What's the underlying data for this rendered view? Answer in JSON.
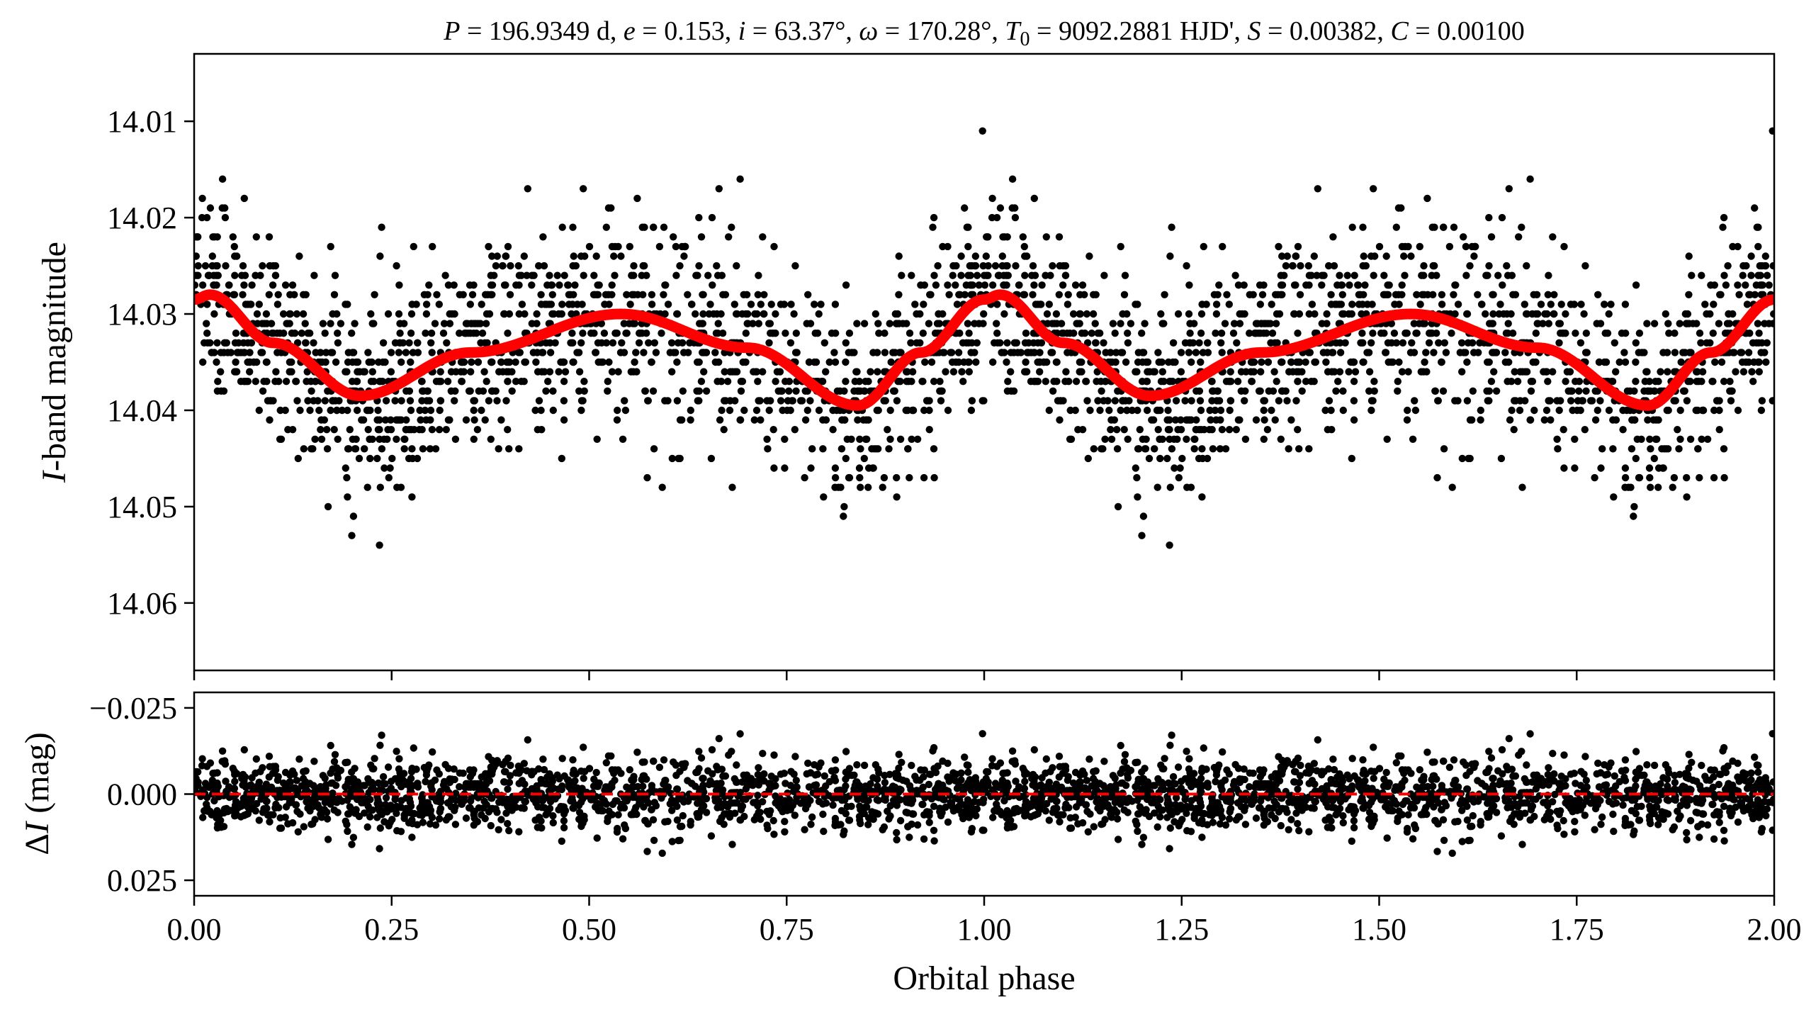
{
  "chart_data": [
    {
      "type": "scatter",
      "panel": "top",
      "title": "P = 196.9349 d, e = 0.153, i = 63.37°, ω = 170.28°, T0 = 9092.2881 HJD', S = 0.00382, C = 0.00100",
      "title_parts": {
        "p_sym": "P",
        "p_val": " = 196.9349 d, ",
        "e_sym": "e",
        "e_val": " = 0.153, ",
        "i_sym": "i",
        "i_val": " = 63.37°, ",
        "w_sym": "ω",
        "w_val": " = 170.28°, ",
        "t_sym": "T",
        "t_sub": "0",
        "t_val": " = 9092.2881 HJD', ",
        "s_sym": "S",
        "s_val": " = 0.00382, ",
        "c_sym": "C",
        "c_val": " = 0.00100"
      },
      "xlabel": "",
      "ylabel_italic": "I",
      "ylabel_rest": "-band magnitude",
      "xlim": [
        0.0,
        2.0
      ],
      "ylim": [
        14.067,
        14.003
      ],
      "y_inverted": true,
      "yticks": [
        14.01,
        14.02,
        14.03,
        14.04,
        14.05,
        14.06
      ],
      "ytick_labels": [
        "14.01",
        "14.02",
        "14.03",
        "14.04",
        "14.05",
        "14.06"
      ],
      "xticks": [
        0.0,
        0.25,
        0.5,
        0.75,
        1.0,
        1.25,
        1.5,
        1.75,
        2.0
      ],
      "series": [
        {
          "kind": "observations",
          "color": "#000000",
          "model_note": "points scattered around model curve",
          "scatter_sigma_mag": 0.0052,
          "n_points_per_cycle": 1500
        },
        {
          "kind": "model",
          "color": "#ff0000",
          "keypoints_phase": [
            0.0,
            0.02,
            0.1,
            0.21,
            0.35,
            0.54,
            0.7,
            0.84,
            0.92,
            1.0,
            1.02
          ],
          "keypoints_mag": [
            14.0285,
            14.028,
            14.033,
            14.0385,
            14.034,
            14.03,
            14.0335,
            14.0395,
            14.034,
            14.0285,
            14.028
          ]
        }
      ]
    },
    {
      "type": "scatter",
      "panel": "bottom",
      "xlabel": "Orbital phase",
      "ylabel_greek": "Δ",
      "ylabel_italic": "I",
      "ylabel_rest": " (mag)",
      "xlim": [
        0.0,
        2.0
      ],
      "ylim": [
        0.0295,
        -0.0295
      ],
      "y_inverted": true,
      "yticks": [
        -0.025,
        0.0,
        0.025
      ],
      "ytick_labels": [
        "−0.025",
        "0.000",
        "0.025"
      ],
      "xticks": [
        0.0,
        0.25,
        0.5,
        0.75,
        1.0,
        1.25,
        1.5,
        1.75,
        2.0
      ],
      "xtick_labels": [
        "0.00",
        "0.25",
        "0.50",
        "0.75",
        "1.00",
        "1.25",
        "1.50",
        "1.75",
        "2.00"
      ],
      "series": [
        {
          "kind": "residuals",
          "color": "#000000",
          "scatter_sigma_mag": 0.0052
        },
        {
          "kind": "zero-line",
          "color": "#ff0000",
          "style": "dashed",
          "y": 0.0
        }
      ]
    }
  ]
}
